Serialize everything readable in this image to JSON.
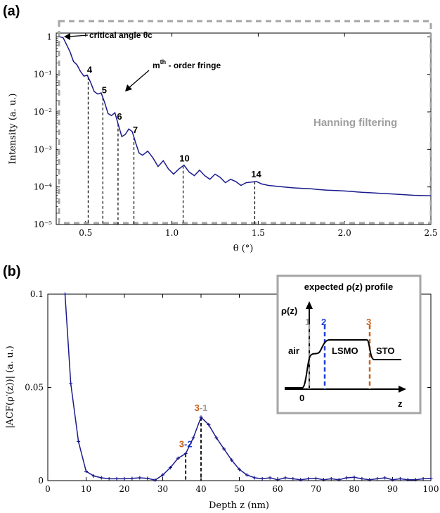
{
  "chart_data": [
    {
      "type": "line",
      "panel_label": "(a)",
      "xlabel": "θ (°)",
      "ylabel": "Intensity (a. u.)",
      "xlim": [
        0.33,
        2.5
      ],
      "ylim_log10": [
        -5,
        0.1
      ],
      "y_scale": "log",
      "x_ticks": [
        0.5,
        1.0,
        1.5,
        2.0,
        2.5
      ],
      "x_tick_labels": [
        "0.5",
        "1.0",
        "1.5",
        "2.0",
        "2.5"
      ],
      "y_ticks_log10": [
        -5,
        -4,
        -3,
        -2,
        -1,
        0
      ],
      "y_tick_labels": [
        "10⁻⁵",
        "10⁻⁴",
        "10⁻³",
        "10⁻²",
        "10⁻¹",
        "1"
      ],
      "line_color": "#1a1a8c",
      "series": [
        {
          "x": [
            0.35,
            0.37,
            0.39,
            0.41,
            0.43,
            0.45,
            0.47,
            0.49,
            0.51,
            0.53,
            0.55,
            0.57,
            0.59,
            0.61,
            0.63,
            0.65,
            0.67,
            0.69,
            0.71,
            0.73,
            0.75,
            0.77,
            0.79,
            0.81,
            0.83,
            0.86,
            0.89,
            0.92,
            0.95,
            0.98,
            1.01,
            1.04,
            1.07,
            1.1,
            1.13,
            1.16,
            1.19,
            1.22,
            1.25,
            1.28,
            1.31,
            1.34,
            1.37,
            1.4,
            1.43,
            1.46,
            1.49,
            1.52,
            1.56,
            1.6,
            1.65,
            1.7,
            1.75,
            1.8,
            1.85,
            1.9,
            1.95,
            2.0,
            2.05,
            2.1,
            2.15,
            2.2,
            2.25,
            2.3,
            2.35,
            2.4,
            2.45,
            2.5
          ],
          "y": [
            1.0,
            0.95,
            0.62,
            0.4,
            0.22,
            0.18,
            0.12,
            0.09,
            0.095,
            0.06,
            0.035,
            0.03,
            0.032,
            0.018,
            0.009,
            0.008,
            0.0095,
            0.0045,
            0.0022,
            0.0025,
            0.0035,
            0.003,
            0.0015,
            0.0008,
            0.0007,
            0.0009,
            0.0006,
            0.00035,
            0.0005,
            0.0003,
            0.00022,
            0.0003,
            0.00038,
            0.00025,
            0.0002,
            0.00028,
            0.0002,
            0.00016,
            0.00022,
            0.00018,
            0.00013,
            0.00016,
            0.00014,
            0.00011,
            0.00013,
            0.000135,
            0.00014,
            0.00012,
            0.00011,
            0.000105,
            0.0001,
            9.5e-05,
            9.2e-05,
            9e-05,
            8.5e-05,
            8.2e-05,
            8e-05,
            7.8e-05,
            7.5e-05,
            7.2e-05,
            7e-05,
            6.8e-05,
            6.6e-05,
            6.4e-05,
            6.2e-05,
            6e-05,
            5.9e-05,
            5.8e-05
          ]
        }
      ],
      "fringes": [
        {
          "order": "4",
          "x": 0.515
        },
        {
          "order": "5",
          "x": 0.6
        },
        {
          "order": "6",
          "x": 0.688
        },
        {
          "order": "7",
          "x": 0.78
        },
        {
          "order": "10",
          "x": 1.065
        },
        {
          "order": "14",
          "x": 1.48
        }
      ],
      "annotations": {
        "critical_angle": "critical angle θc",
        "fringe_base": "m",
        "fringe_sup": "th",
        "fringe_rest": " - order fringe",
        "filter": "Hanning filtering"
      }
    },
    {
      "type": "line",
      "panel_label": "(b)",
      "xlabel": "Depth z (nm)",
      "ylabel": "|ACF(ρ′(z))| (a. u.)",
      "xlim": [
        0,
        100
      ],
      "ylim": [
        0,
        0.1
      ],
      "x_ticks": [
        0,
        10,
        20,
        30,
        40,
        50,
        60,
        70,
        80,
        90,
        100
      ],
      "y_ticks": [
        0,
        0.05,
        0.1
      ],
      "y_tick_labels": [
        "0",
        "0.05",
        "0.1"
      ],
      "line_color": "#1a1a8c",
      "series": [
        {
          "x": [
            4.5,
            6,
            8,
            10,
            12,
            14,
            16,
            18,
            20,
            22,
            24,
            26,
            28,
            30,
            32,
            34,
            36,
            38,
            40,
            42,
            44,
            46,
            48,
            50,
            52,
            54,
            56,
            58,
            60,
            62,
            64,
            66,
            68,
            70,
            72,
            74,
            76,
            78,
            80,
            82,
            84,
            86,
            88,
            90,
            92,
            94,
            96,
            98,
            100
          ],
          "y": [
            0.1,
            0.052,
            0.021,
            0.005,
            0.0025,
            0.0015,
            0.001,
            0.001,
            0.001,
            0.0012,
            0.0015,
            0.0012,
            0.0003,
            0.003,
            0.007,
            0.012,
            0.0145,
            0.023,
            0.034,
            0.03,
            0.023,
            0.017,
            0.011,
            0.006,
            0.003,
            0.0015,
            0.001,
            0.0015,
            0.0005,
            0.0015,
            0.001,
            0.0005,
            0.001,
            0.0012,
            0.0005,
            0.001,
            0.0005,
            0.0015,
            0.0018,
            0.001,
            0.0005,
            0.001,
            0.0015,
            0.0005,
            0.001,
            0.0005,
            0.0005,
            0.001,
            0.0012
          ]
        }
      ],
      "markers": [
        {
          "left": "3",
          "sep": "-",
          "right": "2",
          "x": 36
        },
        {
          "left": "3",
          "sep": "-",
          "right": "1",
          "x": 40
        }
      ],
      "marker_colors": {
        "c1": "#9e9e9e",
        "c2": "#1f3fd6",
        "c3": "#c8601a"
      },
      "inset": {
        "title": "expected ρ(z) profile",
        "ylabel": "ρ(z)",
        "xlabel": "z",
        "origin": "0",
        "line1": "1",
        "line2": "2",
        "line3": "3",
        "region_air": "air",
        "region_lsmo": "LSMO",
        "region_sto": "STO"
      }
    }
  ]
}
